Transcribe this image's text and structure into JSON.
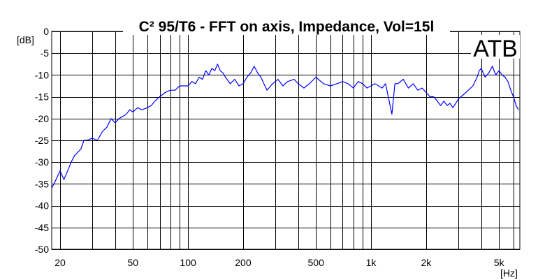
{
  "chart_data": {
    "type": "line",
    "title": "C² 95/T6 - FFT on axis, Impedance, Vol=15l",
    "brand": "ATB",
    "ylabel": "[dB]",
    "xlabel": "[Hz]",
    "xscale": "log",
    "xlim": [
      18,
      6500
    ],
    "ylim": [
      -50,
      0
    ],
    "y_ticks": [
      0,
      -5,
      -10,
      -15,
      -20,
      -25,
      -30,
      -35,
      -40,
      -45,
      -50
    ],
    "y_tick_labels": [
      "0",
      "-5",
      "-10",
      "-15",
      "-20",
      "-25",
      "-30",
      "-35",
      "-40",
      "-45",
      "-50"
    ],
    "x_ticks": [
      20,
      50,
      100,
      200,
      500,
      1000,
      2000,
      5000
    ],
    "x_tick_labels": [
      "20",
      "50",
      "100",
      "200",
      "500",
      "1k",
      "2k",
      "5k"
    ],
    "x_grid": [
      20,
      30,
      40,
      50,
      60,
      70,
      80,
      90,
      100,
      200,
      300,
      400,
      500,
      600,
      700,
      800,
      900,
      1000,
      2000,
      3000,
      4000,
      5000,
      6000
    ],
    "grid": true,
    "series": [
      {
        "color": "#0000ff",
        "x": [
          18,
          19,
          20,
          21,
          22,
          23,
          24,
          26,
          27,
          28,
          30,
          32,
          34,
          36,
          38,
          40,
          42,
          44,
          46,
          48,
          50,
          53,
          56,
          60,
          63,
          66,
          70,
          75,
          80,
          85,
          90,
          95,
          100,
          105,
          110,
          115,
          120,
          125,
          130,
          135,
          140,
          145,
          150,
          155,
          160,
          170,
          180,
          190,
          200,
          210,
          220,
          230,
          240,
          250,
          270,
          290,
          310,
          330,
          350,
          380,
          400,
          430,
          460,
          500,
          550,
          600,
          650,
          700,
          750,
          800,
          850,
          900,
          950,
          1000,
          1050,
          1100,
          1150,
          1200,
          1250,
          1300,
          1350,
          1400,
          1500,
          1600,
          1700,
          1800,
          1900,
          2000,
          2100,
          2200,
          2300,
          2400,
          2500,
          2600,
          2700,
          2800,
          2900,
          3000,
          3200,
          3400,
          3600,
          3800,
          3900,
          4000,
          4200,
          4400,
          4600,
          4800,
          5000,
          5200,
          5400,
          5600,
          5800,
          6000,
          6200,
          6400
        ],
        "y": [
          -36,
          -34,
          -32,
          -34,
          -32,
          -30,
          -28.5,
          -27,
          -25,
          -25,
          -24.5,
          -25,
          -23,
          -22,
          -20,
          -21,
          -20,
          -19.5,
          -19,
          -18,
          -18.5,
          -17.5,
          -18,
          -17.5,
          -17,
          -16,
          -15,
          -14,
          -13.5,
          -13.5,
          -12.5,
          -12.5,
          -12.5,
          -11.5,
          -12,
          -10.5,
          -11,
          -9,
          -10,
          -8.5,
          -9,
          -7.5,
          -9,
          -9.5,
          -10.5,
          -12,
          -11,
          -12.5,
          -12,
          -10.5,
          -9.5,
          -8,
          -9.5,
          -10.5,
          -13.5,
          -12,
          -11,
          -12.5,
          -11.5,
          -11,
          -12,
          -13,
          -12,
          -10.5,
          -12,
          -12.5,
          -12,
          -11.5,
          -12,
          -13,
          -11.5,
          -12,
          -13,
          -12.5,
          -12,
          -12.5,
          -13,
          -12,
          -15.5,
          -19,
          -12,
          -12,
          -11,
          -13,
          -12,
          -13.5,
          -13,
          -14,
          -15,
          -15,
          -16,
          -17,
          -16,
          -17,
          -16.5,
          -17.5,
          -16.5,
          -15.5,
          -14.5,
          -13.5,
          -12.5,
          -10.5,
          -9,
          -8.5,
          -10.5,
          -9.5,
          -8,
          -10,
          -9,
          -10,
          -10.5,
          -11.5,
          -13.5,
          -15,
          -17,
          -18
        ]
      }
    ]
  }
}
